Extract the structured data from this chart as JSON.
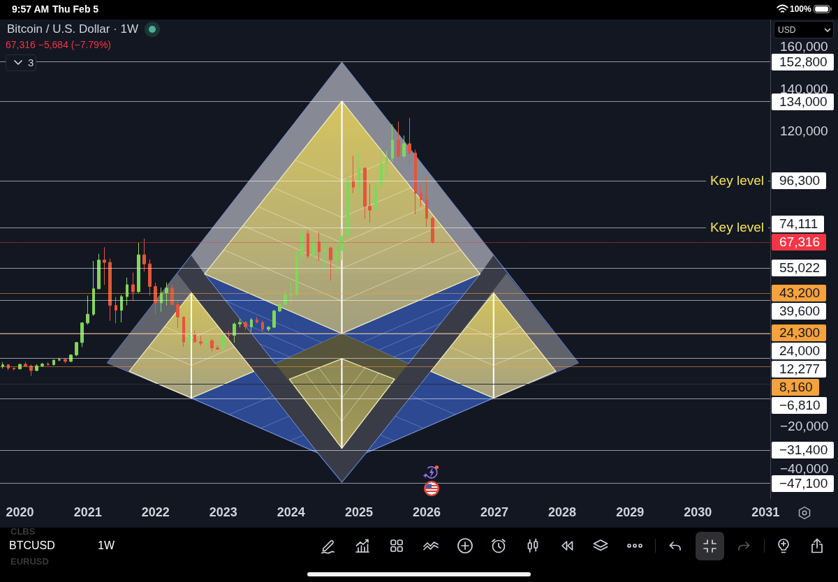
{
  "chart_data": {
    "type": "candlestick",
    "title": "Bitcoin / U.S. Dollar · 1W",
    "subtitle": "67,316 −5,684 (−7.79%)",
    "annotations": [
      "9:57 AM",
      "Thu Feb 5",
      "100%",
      "3",
      "USD",
      "CLBS",
      "BTCUSD",
      "EURUSD",
      "1W",
      "152,800",
      "134,000",
      "96,300",
      "74,111",
      "67,316",
      "55,022",
      "43,200",
      "39,600",
      "24,300",
      "24,000",
      "12,277",
      "8,160",
      "−6,810",
      "−31,400",
      "−47,100"
    ],
    "x": [
      "2019-10",
      "2019-11",
      "2019-12",
      "2020-01",
      "2020-02",
      "2020-03",
      "2020-04",
      "2020-05",
      "2020-06",
      "2020-07",
      "2020-08",
      "2020-09",
      "2020-10",
      "2020-11",
      "2020-12",
      "2021-01",
      "2021-02",
      "2021-03",
      "2021-04",
      "2021-05",
      "2021-06",
      "2021-07",
      "2021-08",
      "2021-09",
      "2021-10",
      "2021-11",
      "2021-12",
      "2022-01",
      "2022-02",
      "2022-03",
      "2022-04",
      "2022-05",
      "2022-06",
      "2022-07",
      "2022-08",
      "2022-09",
      "2022-10",
      "2022-11",
      "2022-12",
      "2023-01",
      "2023-02",
      "2023-03",
      "2023-04",
      "2023-05",
      "2023-06",
      "2023-07",
      "2023-08",
      "2023-09",
      "2023-10",
      "2023-11",
      "2023-12",
      "2024-01",
      "2024-02",
      "2024-03",
      "2024-04",
      "2024-05",
      "2024-06",
      "2024-07",
      "2024-08",
      "2024-09",
      "2024-10",
      "2024-11",
      "2024-12",
      "2025-01",
      "2025-02",
      "2025-03",
      "2025-04",
      "2025-05",
      "2025-06",
      "2025-07",
      "2025-08",
      "2025-09",
      "2025-10",
      "2025-11",
      "2025-12",
      "2026-01",
      "2026-02"
    ],
    "ohlc": [
      [
        8300,
        10400,
        7300,
        9150
      ],
      [
        9150,
        9500,
        6500,
        7550
      ],
      [
        7550,
        7750,
        6450,
        7200
      ],
      [
        7200,
        9580,
        6860,
        9350
      ],
      [
        9350,
        10500,
        8450,
        8550
      ],
      [
        8550,
        9200,
        3850,
        6420
      ],
      [
        6420,
        9470,
        6150,
        8630
      ],
      [
        8630,
        10080,
        8110,
        9450
      ],
      [
        9450,
        10380,
        8830,
        9140
      ],
      [
        9140,
        11440,
        8900,
        11350
      ],
      [
        11350,
        12470,
        10900,
        11660
      ],
      [
        11660,
        12070,
        9880,
        10780
      ],
      [
        10780,
        14100,
        10380,
        13800
      ],
      [
        13800,
        19900,
        13200,
        19700
      ],
      [
        19700,
        29300,
        17600,
        29000
      ],
      [
        29000,
        41950,
        28150,
        33100
      ],
      [
        33100,
        58350,
        32300,
        45200
      ],
      [
        45200,
        61800,
        45000,
        58800
      ],
      [
        58800,
        64900,
        47000,
        57700
      ],
      [
        57700,
        59500,
        30000,
        37300
      ],
      [
        37300,
        41300,
        28800,
        35000
      ],
      [
        35000,
        42400,
        29300,
        41500
      ],
      [
        41500,
        50500,
        37300,
        47100
      ],
      [
        47100,
        52900,
        39600,
        43800
      ],
      [
        43800,
        67000,
        43300,
        61300
      ],
      [
        61300,
        69000,
        53300,
        57000
      ],
      [
        57000,
        59100,
        42000,
        46300
      ],
      [
        46300,
        48000,
        32900,
        38500
      ],
      [
        38500,
        45800,
        34300,
        43200
      ],
      [
        43200,
        48200,
        37200,
        45500
      ],
      [
        45500,
        47400,
        37600,
        37700
      ],
      [
        37700,
        40000,
        26700,
        31800
      ],
      [
        31800,
        31900,
        17600,
        19900
      ],
      [
        19900,
        24700,
        18800,
        23300
      ],
      [
        23300,
        25200,
        19600,
        20000
      ],
      [
        20000,
        22800,
        18150,
        19400
      ],
      [
        19400,
        21000,
        18200,
        20500
      ],
      [
        20500,
        21450,
        15500,
        17150
      ],
      [
        17150,
        18400,
        16300,
        16550
      ],
      [
        16550,
        23950,
        16500,
        23150
      ],
      [
        23150,
        25250,
        21400,
        23100
      ],
      [
        23100,
        29200,
        19600,
        28500
      ],
      [
        28500,
        31000,
        26950,
        29250
      ],
      [
        29250,
        29850,
        25800,
        27200
      ],
      [
        27200,
        31400,
        24800,
        30500
      ],
      [
        30500,
        31800,
        28900,
        29250
      ],
      [
        29250,
        30200,
        25200,
        25950
      ],
      [
        25950,
        27500,
        24900,
        26950
      ],
      [
        26950,
        35200,
        26600,
        34650
      ],
      [
        34650,
        38450,
        34100,
        37750
      ],
      [
        37750,
        44700,
        37650,
        42300
      ],
      [
        42300,
        48970,
        38500,
        42600
      ],
      [
        42600,
        64000,
        41900,
        61200
      ],
      [
        61200,
        73800,
        59000,
        71300
      ],
      [
        71300,
        72800,
        59600,
        60650
      ],
      [
        60650,
        71950,
        56500,
        67500
      ],
      [
        67500,
        72000,
        58400,
        62700
      ],
      [
        62700,
        70000,
        53500,
        64600
      ],
      [
        64600,
        65100,
        49000,
        59000
      ],
      [
        59000,
        66500,
        52550,
        63300
      ],
      [
        63300,
        73600,
        58900,
        70200
      ],
      [
        70200,
        99800,
        66800,
        96400
      ],
      [
        96400,
        108300,
        90500,
        93400
      ],
      [
        93400,
        109400,
        89200,
        102400
      ],
      [
        102400,
        102800,
        78200,
        84300
      ],
      [
        84300,
        95000,
        76600,
        82500
      ],
      [
        82500,
        95700,
        74400,
        94200
      ],
      [
        94200,
        112000,
        93400,
        104600
      ],
      [
        104600,
        110600,
        98200,
        107100
      ],
      [
        107100,
        123200,
        105100,
        115700
      ],
      [
        115700,
        124500,
        107300,
        108200
      ],
      [
        108200,
        117900,
        107300,
        114000
      ],
      [
        114000,
        126200,
        103500,
        109600
      ],
      [
        109600,
        111200,
        80600,
        90400
      ],
      [
        90400,
        94600,
        84400,
        87500
      ],
      [
        87500,
        97900,
        74500,
        78600
      ],
      [
        78600,
        79400,
        66600,
        67316
      ]
    ],
    "colors": [
      "#82d65b",
      "#e4553a",
      "#e4553a",
      "#82d65b",
      "#e4553a",
      "#e4553a",
      "#82d65b",
      "#82d65b",
      "#e4553a",
      "#82d65b",
      "#82d65b",
      "#e4553a",
      "#82d65b",
      "#82d65b",
      "#82d65b",
      "#82d65b",
      "#82d65b",
      "#82d65b",
      "#e4553a",
      "#e4553a",
      "#e4553a",
      "#82d65b",
      "#82d65b",
      "#e4553a",
      "#82d65b",
      "#e4553a",
      "#e4553a",
      "#e4553a",
      "#82d65b",
      "#82d65b",
      "#e4553a",
      "#e4553a",
      "#e4553a",
      "#82d65b",
      "#e4553a",
      "#e4553a",
      "#82d65b",
      "#e4553a",
      "#e4553a",
      "#82d65b",
      "#e4553a",
      "#82d65b",
      "#82d65b",
      "#e4553a",
      "#82d65b",
      "#e4553a",
      "#e4553a",
      "#82d65b",
      "#82d65b",
      "#82d65b",
      "#82d65b",
      "#82d65b",
      "#82d65b",
      "#82d65b",
      "#e4553a",
      "#82d65b",
      "#e4553a",
      "#82d65b",
      "#e4553a",
      "#82d65b",
      "#82d65b",
      "#82d65b",
      "#e4553a",
      "#82d65b",
      "#e4553a",
      "#e4553a",
      "#82d65b",
      "#82d65b",
      "#82d65b",
      "#82d65b",
      "#e4553a",
      "#82d65b",
      "#e4553a",
      "#e4553a",
      "#e4553a",
      "#e4553a",
      "#e4553a"
    ],
    "xlim": [
      "2019-09-16",
      "2031-01-26"
    ],
    "xticks": [
      "2020",
      "2021",
      "2022",
      "2023",
      "2024",
      "2025",
      "2026",
      "2027",
      "2028",
      "2029",
      "2030",
      "2031"
    ],
    "ylim": [
      -54500,
      172900
    ],
    "yticks": [
      {
        "value": -40000,
        "label": "−40,000"
      },
      {
        "value": -20000,
        "label": "−20,000"
      },
      {
        "value": 120000,
        "label": "120,000"
      },
      {
        "value": 140000,
        "label": "140,000"
      },
      {
        "value": 160000,
        "label": "160,000"
      }
    ],
    "ref_lines": [
      {
        "axis": "y",
        "value": 152800,
        "color": "#ffffff"
      },
      {
        "axis": "y",
        "value": 134000,
        "color": "#ffffff"
      },
      {
        "axis": "y",
        "value": 96300,
        "label": "Key level",
        "color": "#ffffff"
      },
      {
        "axis": "y",
        "value": 74111,
        "label": "Key level",
        "color": "#ffffff"
      },
      {
        "axis": "y",
        "value": 67316,
        "color": "#f23645",
        "line_style": "dotted"
      },
      {
        "axis": "y",
        "value": 55022,
        "color": "#ffffff"
      },
      {
        "axis": "y",
        "value": 43200,
        "color": "#f7a23b"
      },
      {
        "axis": "y",
        "value": 39600,
        "color": "#ffffff"
      },
      {
        "axis": "y",
        "value": 24300,
        "color": "#f7a23b"
      },
      {
        "axis": "y",
        "value": 24000,
        "color": "#ffffff"
      },
      {
        "axis": "y",
        "value": 12277,
        "color": "#ffffff"
      },
      {
        "axis": "y",
        "value": 8160,
        "color": "#f7a23b"
      },
      {
        "axis": "y",
        "value": -6810,
        "color": "#ffffff"
      },
      {
        "axis": "y",
        "value": -31400,
        "color": "#ffffff"
      },
      {
        "axis": "y",
        "value": -47100,
        "color": "#ffffff"
      }
    ]
  }
}
